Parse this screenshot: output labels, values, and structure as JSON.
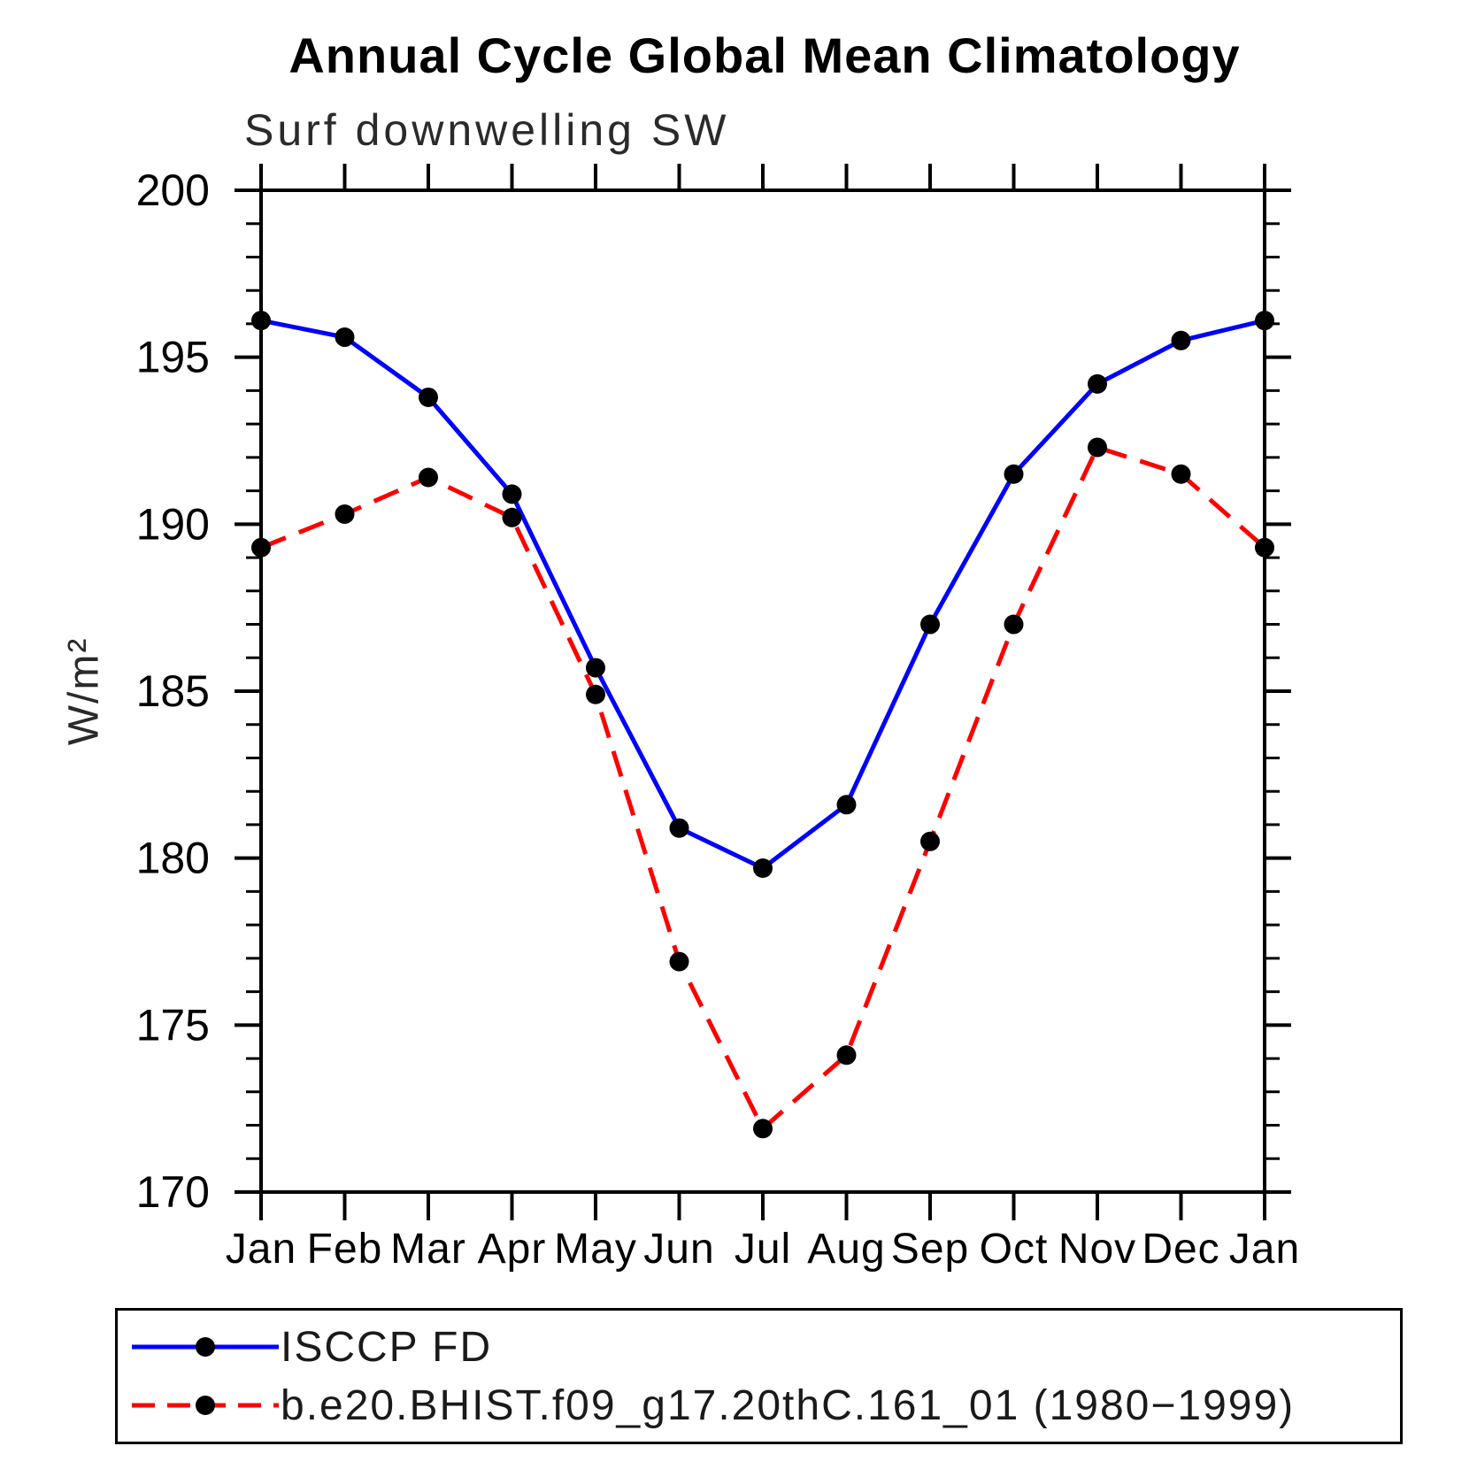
{
  "header": {
    "title": "Annual Cycle Global Mean Climatology",
    "subtitle": "Surf downwelling SW"
  },
  "axes": {
    "ylabel": "W/m²"
  },
  "chart_data": {
    "type": "line",
    "categories": [
      "Jan",
      "Feb",
      "Mar",
      "Apr",
      "May",
      "Jun",
      "Jul",
      "Aug",
      "Sep",
      "Oct",
      "Nov",
      "Dec",
      "Jan"
    ],
    "series": [
      {
        "name": "ISCCP FD",
        "color": "#0000ff",
        "line_style": "solid",
        "marker": "dot",
        "values": [
          196.1,
          195.6,
          193.8,
          190.9,
          185.7,
          180.9,
          179.7,
          181.6,
          187.0,
          191.5,
          194.2,
          195.5,
          196.1
        ]
      },
      {
        "name": "b.e20.BHIST.f09_g17.20thC.161_01 (1980−1999)",
        "color": "#ff0000",
        "line_style": "dashed",
        "marker": "dot",
        "values": [
          189.3,
          190.3,
          191.4,
          190.2,
          184.9,
          176.9,
          171.9,
          174.1,
          180.5,
          187.0,
          192.3,
          191.5,
          189.3
        ]
      }
    ],
    "ylim": [
      170,
      200
    ],
    "y_major_ticks": [
      170,
      175,
      180,
      185,
      190,
      195,
      200
    ],
    "y_minor_step": 1,
    "marker_color": "#000000",
    "grid": false,
    "legend_position": "bottom"
  },
  "legend": {
    "entries": [
      {
        "label": "ISCCP FD",
        "color": "#0000ff",
        "line_style": "solid",
        "marker": "dot"
      },
      {
        "label": "b.e20.BHIST.f09_g17.20thC.161_01 (1980−1999)",
        "color": "#ff0000",
        "line_style": "dashed",
        "marker": "dot"
      }
    ]
  }
}
